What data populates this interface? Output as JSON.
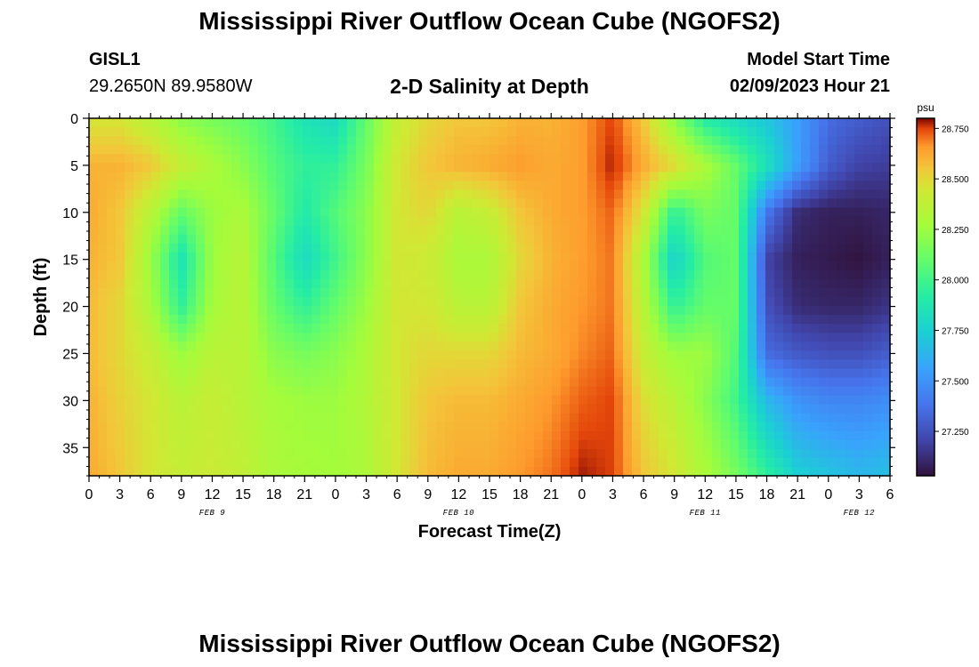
{
  "titles": {
    "main": "Mississippi River Outflow Ocean Cube (NGOFS2)",
    "repeat": "Mississippi River Outflow Ocean Cube (NGOFS2)"
  },
  "station": {
    "id": "GISL1",
    "coords": "29.2650N  89.9580W"
  },
  "model": {
    "label": "Model Start Time",
    "time": "02/09/2023 Hour 21"
  },
  "chart_data": {
    "type": "heatmap",
    "title": "2-D Salinity at Depth",
    "xlabel": "Forecast Time(Z)",
    "ylabel": "Depth (ft)",
    "x_ticks": [
      "0",
      "3",
      "6",
      "9",
      "12",
      "15",
      "18",
      "21",
      "0",
      "3",
      "6",
      "9",
      "12",
      "15",
      "18",
      "21",
      "0",
      "3",
      "6",
      "9",
      "12",
      "15",
      "18",
      "21",
      "0",
      "3",
      "6"
    ],
    "x_tick_hours": [
      0,
      3,
      6,
      9,
      12,
      15,
      18,
      21,
      24,
      27,
      30,
      33,
      36,
      39,
      42,
      45,
      48,
      51,
      54,
      57,
      60,
      63,
      66,
      69,
      72,
      75,
      78
    ],
    "x_range_hours": [
      0,
      78
    ],
    "date_labels": [
      {
        "text": "FEB 9",
        "hour": 12
      },
      {
        "text": "FEB 10",
        "hour": 36
      },
      {
        "text": "FEB 11",
        "hour": 60
      },
      {
        "text": "FEB 12",
        "hour": 75
      }
    ],
    "y_ticks": [
      "0",
      "5",
      "10",
      "15",
      "20",
      "25",
      "30",
      "35"
    ],
    "y_tick_values": [
      0,
      5,
      10,
      15,
      20,
      25,
      30,
      35
    ],
    "ylim": [
      0,
      38
    ],
    "y_inverted": true,
    "colorbar": {
      "unit": "psu",
      "ticks": [
        "28.750",
        "28.500",
        "28.250",
        "28.000",
        "27.750",
        "27.500",
        "27.250"
      ],
      "tick_values": [
        28.75,
        28.5,
        28.25,
        28.0,
        27.75,
        27.5,
        27.25
      ],
      "range": [
        27.03,
        28.8
      ]
    },
    "depths_ft": [
      0,
      5,
      10,
      15,
      20,
      25,
      30,
      38
    ],
    "hours": [
      0,
      3,
      6,
      9,
      12,
      15,
      18,
      21,
      24,
      27,
      30,
      33,
      36,
      39,
      42,
      45,
      48,
      51,
      54,
      57,
      60,
      63,
      66,
      69,
      72,
      75,
      78
    ],
    "salinity_psu": [
      [
        28.45,
        28.45,
        28.35,
        28.2,
        28.15,
        28.1,
        28.0,
        27.85,
        27.8,
        28.1,
        28.4,
        28.5,
        28.55,
        28.55,
        28.6,
        28.6,
        28.65,
        28.75,
        28.55,
        28.2,
        27.9,
        27.8,
        27.7,
        27.55,
        27.35,
        27.3,
        27.25
      ],
      [
        28.6,
        28.6,
        28.55,
        28.4,
        28.3,
        28.2,
        28.05,
        27.95,
        27.95,
        28.15,
        28.45,
        28.55,
        28.6,
        28.62,
        28.65,
        28.62,
        28.65,
        28.78,
        28.62,
        28.5,
        28.3,
        28.1,
        27.85,
        27.55,
        27.3,
        27.2,
        27.18
      ],
      [
        28.62,
        28.55,
        28.35,
        28.1,
        28.25,
        28.3,
        28.1,
        27.9,
        28.05,
        28.2,
        28.45,
        28.5,
        28.35,
        28.4,
        28.55,
        28.62,
        28.65,
        28.72,
        28.45,
        27.95,
        28.15,
        28.1,
        27.4,
        27.12,
        27.08,
        27.08,
        27.1
      ],
      [
        28.6,
        28.55,
        28.25,
        27.85,
        28.25,
        28.35,
        28.05,
        27.8,
        28.0,
        28.2,
        28.45,
        28.42,
        28.3,
        28.3,
        28.5,
        28.6,
        28.65,
        28.7,
        28.3,
        27.75,
        28.05,
        28.1,
        27.2,
        27.08,
        27.06,
        27.04,
        27.08
      ],
      [
        28.58,
        28.5,
        28.3,
        27.95,
        28.28,
        28.35,
        28.1,
        27.95,
        28.1,
        28.25,
        28.45,
        28.45,
        28.35,
        28.35,
        28.55,
        28.62,
        28.66,
        28.7,
        28.35,
        27.95,
        28.1,
        28.1,
        27.25,
        27.12,
        27.1,
        27.1,
        27.15
      ],
      [
        28.58,
        28.5,
        28.4,
        28.25,
        28.35,
        28.35,
        28.2,
        28.15,
        28.2,
        28.3,
        28.45,
        28.5,
        28.5,
        28.5,
        28.58,
        28.62,
        28.68,
        28.72,
        28.4,
        28.25,
        28.25,
        28.05,
        27.35,
        27.28,
        27.25,
        27.25,
        27.3
      ],
      [
        28.6,
        28.52,
        28.45,
        28.35,
        28.4,
        28.35,
        28.28,
        28.25,
        28.25,
        28.32,
        28.45,
        28.55,
        28.58,
        28.58,
        28.62,
        28.66,
        28.72,
        28.75,
        28.48,
        28.35,
        28.2,
        28.0,
        27.65,
        27.5,
        27.45,
        27.45,
        27.48
      ],
      [
        28.62,
        28.55,
        28.45,
        28.4,
        28.42,
        28.38,
        28.3,
        28.28,
        28.27,
        28.3,
        28.45,
        28.58,
        28.62,
        28.62,
        28.66,
        28.7,
        28.78,
        28.75,
        28.55,
        28.45,
        28.3,
        28.15,
        27.95,
        27.75,
        27.7,
        27.65,
        27.68
      ]
    ]
  }
}
